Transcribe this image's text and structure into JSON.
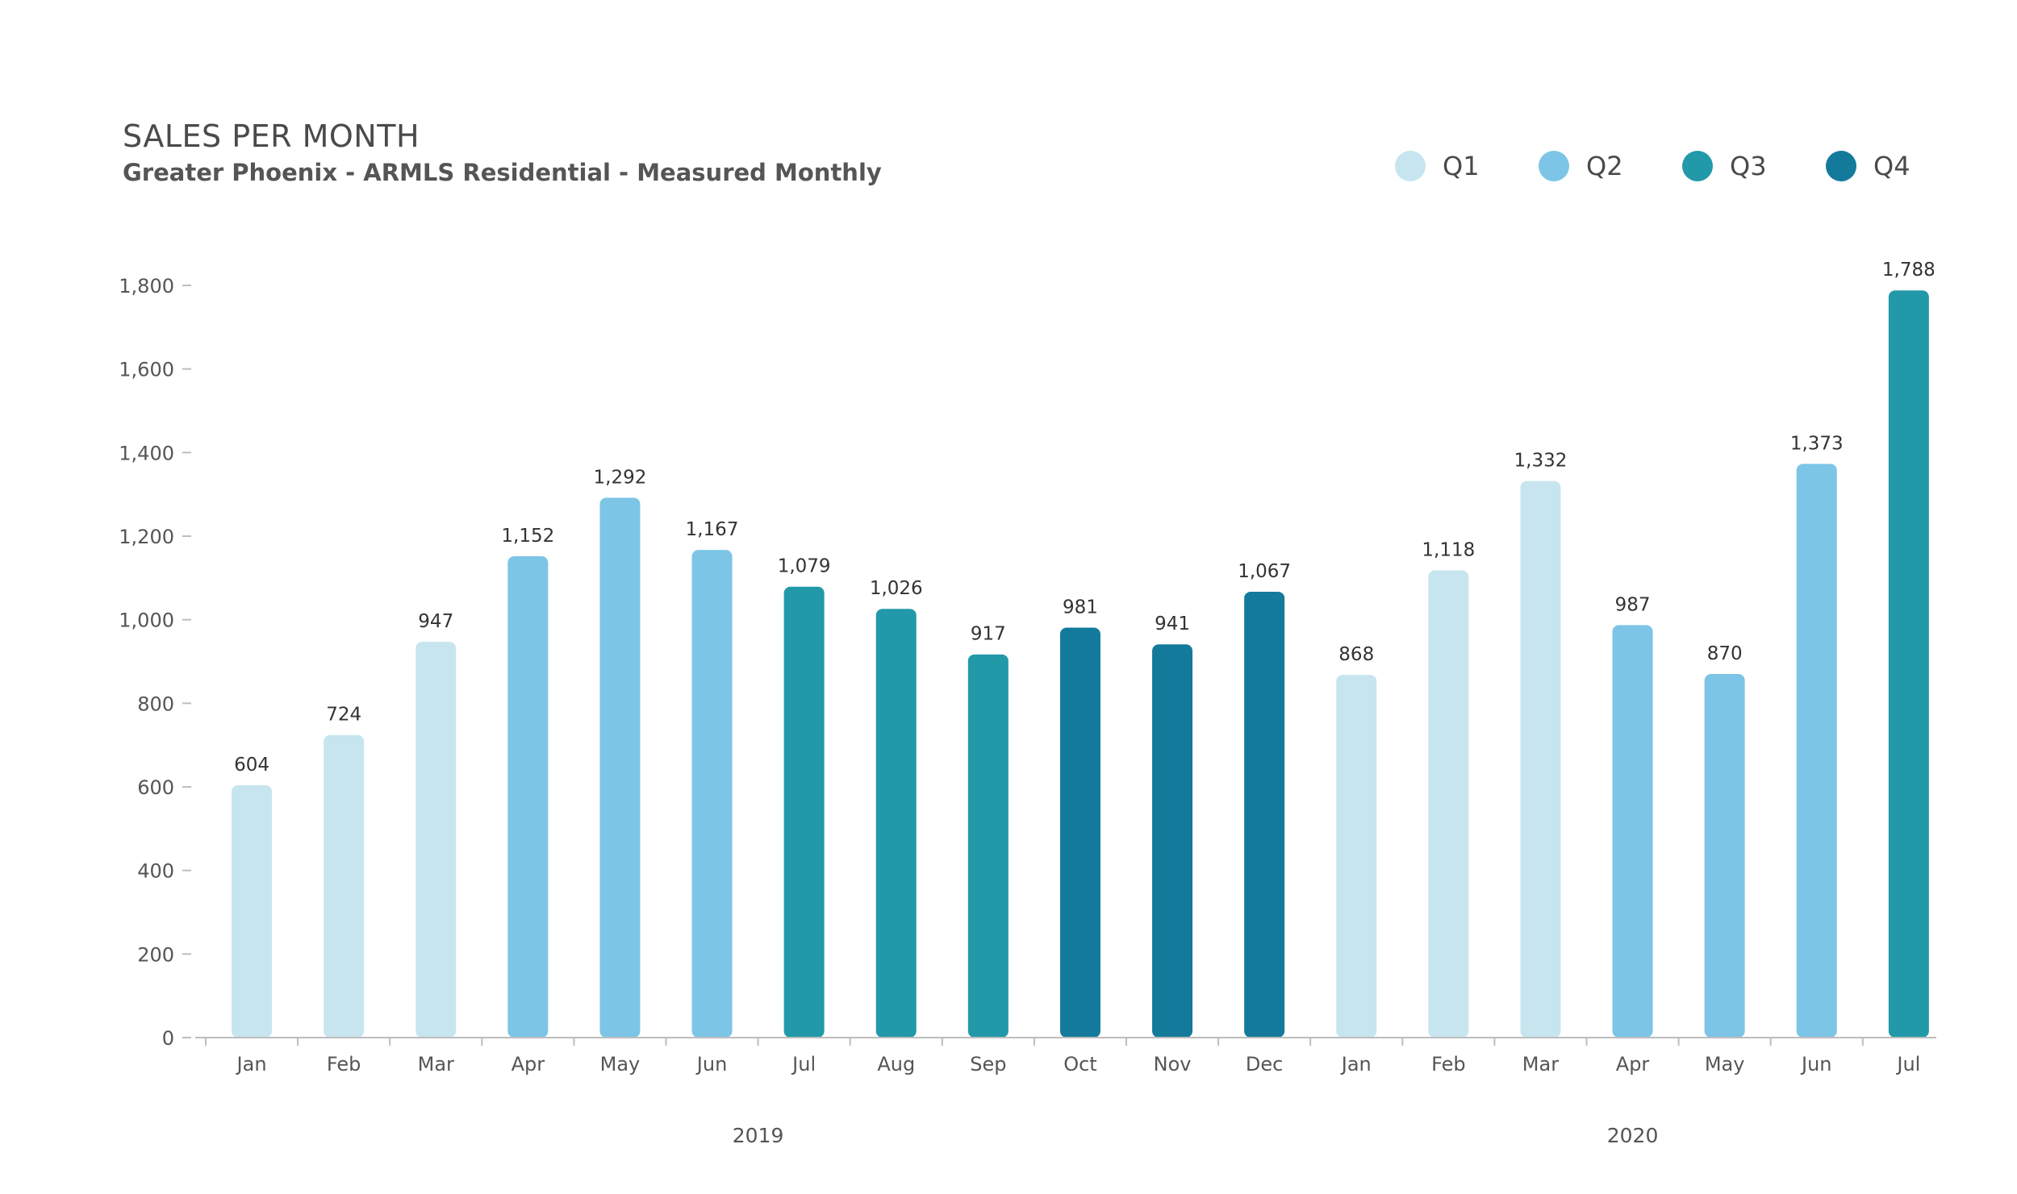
{
  "colors": {
    "Q1": "#c7e5ee",
    "Q2": "#7cc5e6",
    "Q3": "#2299a9",
    "Q4": "#147a9b"
  },
  "chart_data": {
    "type": "bar",
    "title": "SALES PER MONTH",
    "subtitle": "Greater Phoenix - ARMLS Residential - Measured Monthly",
    "xlabel": "",
    "ylabel": "",
    "ylim": [
      0,
      1800
    ],
    "yticks": [
      0,
      200,
      400,
      600,
      800,
      1000,
      1200,
      1400,
      1600,
      1800
    ],
    "ytick_labels": [
      "0",
      "200",
      "400",
      "600",
      "800",
      "1,000",
      "1,200",
      "1,400",
      "1,600",
      "1,800"
    ],
    "legend": [
      {
        "label": "Q1",
        "key": "Q1"
      },
      {
        "label": "Q2",
        "key": "Q2"
      },
      {
        "label": "Q3",
        "key": "Q3"
      },
      {
        "label": "Q4",
        "key": "Q4"
      }
    ],
    "legend_position": "top-right",
    "groups": [
      {
        "label": "2019",
        "start": 0,
        "end": 11
      },
      {
        "label": "2020",
        "start": 12,
        "end": 18
      }
    ],
    "categories": [
      "Jan",
      "Feb",
      "Mar",
      "Apr",
      "May",
      "Jun",
      "Jul",
      "Aug",
      "Sep",
      "Oct",
      "Nov",
      "Dec",
      "Jan",
      "Feb",
      "Mar",
      "Apr",
      "May",
      "Jun",
      "Jul"
    ],
    "values": [
      604,
      724,
      947,
      1152,
      1292,
      1167,
      1079,
      1026,
      917,
      981,
      941,
      1067,
      868,
      1118,
      1332,
      987,
      870,
      1373,
      1788
    ],
    "value_labels": [
      "604",
      "724",
      "947",
      "1,152",
      "1,292",
      "1,167",
      "1,079",
      "1,026",
      "917",
      "981",
      "941",
      "1,067",
      "868",
      "1,118",
      "1,332",
      "987",
      "870",
      "1,373",
      "1,788"
    ],
    "quarters": [
      "Q1",
      "Q1",
      "Q1",
      "Q2",
      "Q2",
      "Q2",
      "Q3",
      "Q3",
      "Q3",
      "Q4",
      "Q4",
      "Q4",
      "Q1",
      "Q1",
      "Q1",
      "Q2",
      "Q2",
      "Q2",
      "Q3"
    ]
  }
}
